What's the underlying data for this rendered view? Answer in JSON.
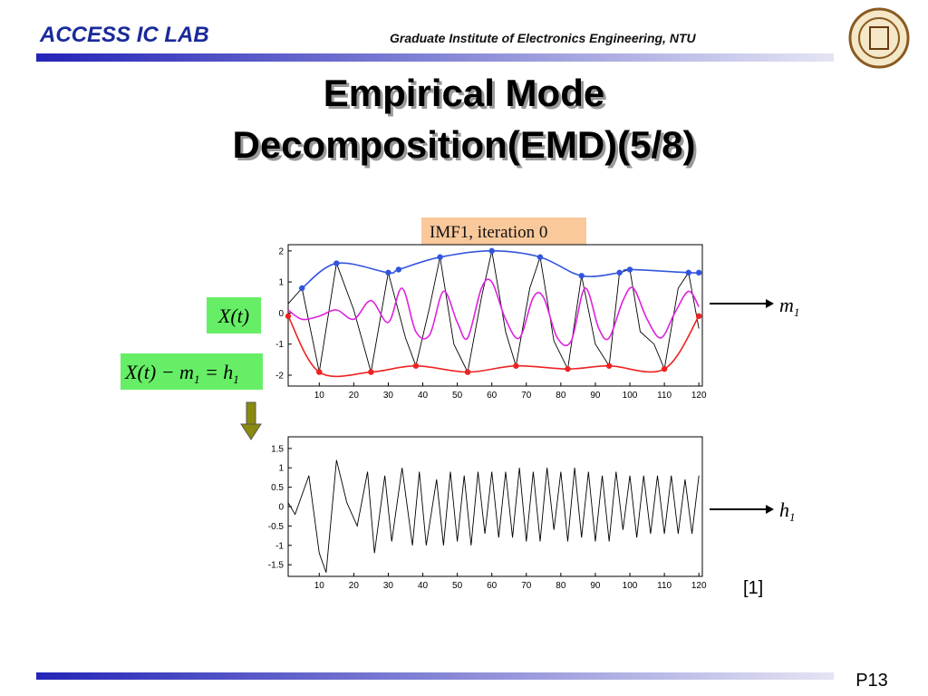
{
  "header": {
    "lab": "ACCESS IC LAB",
    "institute": "Graduate Institute of Electronics Engineering, NTU"
  },
  "title": [
    "Empirical Mode",
    "Decomposition(EMD)(5/8)"
  ],
  "labels": {
    "x_t": "X(t)",
    "equation": [
      "X(t) − m",
      "1",
      " = h",
      "1"
    ],
    "m1": [
      "m",
      "1"
    ],
    "h1": [
      "h",
      "1"
    ],
    "citation": "[1]"
  },
  "footer": {
    "page": "P13"
  },
  "chart_data": [
    {
      "type": "line",
      "title": "IMF1, iteration 0",
      "xlim": [
        1,
        121
      ],
      "ylim": [
        -2.35,
        2.2
      ],
      "xticks": [
        10,
        20,
        30,
        40,
        50,
        60,
        70,
        80,
        90,
        100,
        110,
        120
      ],
      "yticks": [
        -2,
        -1,
        0,
        1,
        2
      ],
      "series": [
        {
          "color": "#000000",
          "smooth": false,
          "markers": false,
          "x": [
            1,
            5,
            10,
            15,
            20,
            25,
            30,
            35,
            38,
            42,
            45,
            49,
            53,
            57,
            60,
            64,
            67,
            71,
            74,
            78,
            82,
            86,
            90,
            94,
            97,
            100,
            103,
            107,
            110,
            114,
            117,
            120
          ],
          "values": [
            0.3,
            0.8,
            -1.9,
            1.6,
            0.1,
            -1.9,
            1.3,
            -0.8,
            -1.7,
            0.2,
            1.8,
            -1.0,
            -1.9,
            0.5,
            2.0,
            -0.6,
            -1.7,
            0.8,
            1.8,
            -0.9,
            -1.8,
            1.2,
            -1.0,
            -1.7,
            1.3,
            1.4,
            -0.6,
            -1.0,
            -1.8,
            0.8,
            1.3,
            -0.5
          ]
        },
        {
          "color": "#3355dd",
          "smooth": true,
          "markers": true,
          "x": [
            5,
            15,
            30,
            33,
            45,
            60,
            74,
            86,
            97,
            100,
            117,
            120
          ],
          "values": [
            0.8,
            1.6,
            1.3,
            1.4,
            1.8,
            2.0,
            1.8,
            1.2,
            1.3,
            1.4,
            1.3,
            1.3
          ]
        },
        {
          "color": "#ee2222",
          "smooth": true,
          "markers": true,
          "x": [
            1,
            10,
            25,
            38,
            53,
            67,
            82,
            94,
            110,
            120
          ],
          "values": [
            -0.1,
            -1.9,
            -1.9,
            -1.7,
            -1.9,
            -1.7,
            -1.8,
            -1.7,
            -1.8,
            -0.1
          ]
        },
        {
          "color": "#dd22dd",
          "smooth": true,
          "markers": false,
          "x": [
            1,
            5,
            10,
            15,
            20,
            25,
            30,
            34,
            38,
            42,
            46,
            50,
            53,
            57,
            60,
            64,
            68,
            72,
            75,
            79,
            83,
            87,
            91,
            94,
            98,
            101,
            105,
            109,
            113,
            117,
            120
          ],
          "values": [
            0.1,
            -0.2,
            -0.1,
            0.1,
            -0.2,
            0.4,
            -0.3,
            0.8,
            -0.6,
            -0.7,
            0.7,
            -0.3,
            -0.8,
            0.8,
            1.0,
            -0.2,
            -0.8,
            0.5,
            0.5,
            -0.8,
            -0.9,
            0.8,
            -0.5,
            -0.8,
            0.4,
            0.8,
            -0.2,
            -0.8,
            0.0,
            0.7,
            0.2
          ]
        }
      ]
    },
    {
      "type": "line",
      "xlim": [
        1,
        121
      ],
      "ylim": [
        -1.8,
        1.8
      ],
      "xticks": [
        10,
        20,
        30,
        40,
        50,
        60,
        70,
        80,
        90,
        100,
        110,
        120
      ],
      "yticks": [
        -1.5,
        -1,
        -0.5,
        0,
        0.5,
        1,
        1.5
      ],
      "series": [
        {
          "color": "#000000",
          "smooth": false,
          "markers": false,
          "x": [
            1,
            3,
            7,
            10,
            12,
            15,
            18,
            21,
            24,
            26,
            29,
            31,
            34,
            37,
            39,
            41,
            44,
            46,
            48,
            50,
            52,
            54,
            56,
            58,
            60,
            62,
            64,
            66,
            68,
            70,
            72,
            74,
            76,
            78,
            80,
            82,
            84,
            86,
            88,
            90,
            92,
            94,
            96,
            98,
            100,
            102,
            104,
            106,
            108,
            110,
            112,
            114,
            116,
            118,
            120
          ],
          "values": [
            0.1,
            -0.2,
            0.8,
            -1.2,
            -1.7,
            1.2,
            0.1,
            -0.5,
            0.9,
            -1.2,
            0.8,
            -0.9,
            1.0,
            -1.0,
            0.9,
            -1.0,
            0.7,
            -1.0,
            0.9,
            -0.9,
            0.8,
            -1.0,
            0.9,
            -0.7,
            0.9,
            -0.8,
            0.9,
            -0.8,
            1.0,
            -0.9,
            0.9,
            -0.9,
            1.0,
            -0.6,
            0.9,
            -0.9,
            1.0,
            -0.8,
            0.9,
            -0.9,
            0.8,
            -0.9,
            0.9,
            -0.6,
            0.8,
            -0.8,
            0.8,
            -0.7,
            0.8,
            -0.7,
            0.8,
            -0.7,
            0.7,
            -0.7,
            0.8
          ]
        }
      ]
    }
  ]
}
